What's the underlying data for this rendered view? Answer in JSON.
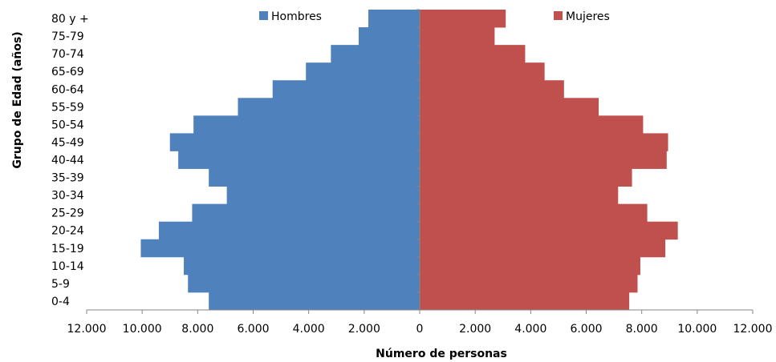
{
  "chart_data": {
    "type": "bar",
    "orientation": "horizontal",
    "layout": "population-pyramid",
    "categories": [
      "0-4",
      "5-9",
      "10-14",
      "15-19",
      "20-24",
      "25-29",
      "30-34",
      "35-39",
      "40-44",
      "45-49",
      "50-54",
      "55-59",
      "60-64",
      "65-69",
      "70-74",
      "75-79",
      "80 y +"
    ],
    "series": [
      {
        "name": "Hombres",
        "side": "left",
        "color": "#4f81bd",
        "values": [
          7600,
          8350,
          8500,
          10050,
          9400,
          8200,
          6950,
          7600,
          8700,
          9000,
          8150,
          6550,
          5300,
          4100,
          3200,
          2200,
          1850
        ]
      },
      {
        "name": "Mujeres",
        "side": "right",
        "color": "#c0504d",
        "values": [
          7550,
          7850,
          7950,
          8850,
          9300,
          8200,
          7150,
          7650,
          8900,
          8950,
          8050,
          6450,
          5200,
          4500,
          3800,
          2700,
          3100
        ]
      }
    ],
    "x_ticks": [
      "12.000",
      "10.000",
      "8.000",
      "6.000",
      "4.000",
      "2.000",
      "0",
      "2.000",
      "4.000",
      "6.000",
      "8.000",
      "10.000",
      "12.000"
    ],
    "xlim": [
      -12000,
      12000
    ],
    "xlabel": "Número de personas",
    "ylabel": "Grupo de Edad (años)",
    "title": "",
    "grid": false,
    "legend": "top"
  }
}
